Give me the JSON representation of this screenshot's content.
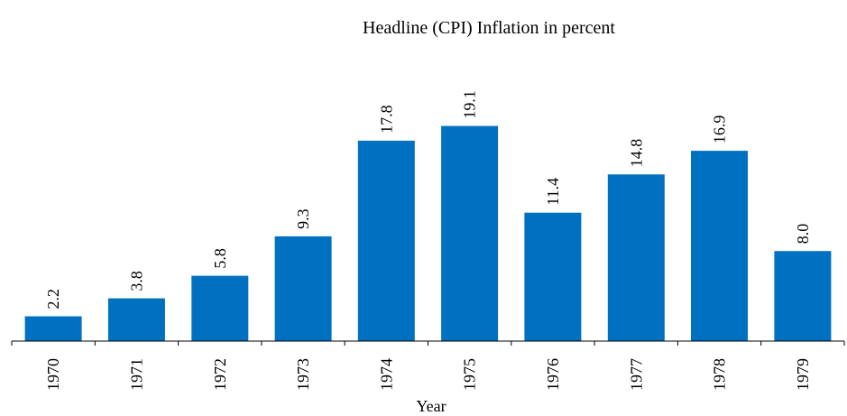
{
  "chart_data": {
    "type": "bar",
    "title": "Headline (CPI) Inflation in percent",
    "xlabel": "Year",
    "ylabel": "",
    "categories": [
      "1970",
      "1971",
      "1972",
      "1973",
      "1974",
      "1975",
      "1976",
      "1977",
      "1978",
      "1979"
    ],
    "values": [
      2.2,
      3.8,
      5.8,
      9.3,
      17.8,
      19.1,
      11.4,
      14.8,
      16.9,
      8.0
    ],
    "data_labels": [
      "2.2",
      "3.8",
      "5.8",
      "9.3",
      "17.8",
      "19.1",
      "11.4",
      "14.8",
      "16.9",
      "8.0"
    ],
    "ylim": [
      0,
      20
    ],
    "grid": false,
    "legend": "none",
    "bar_color": "#0070C0"
  }
}
